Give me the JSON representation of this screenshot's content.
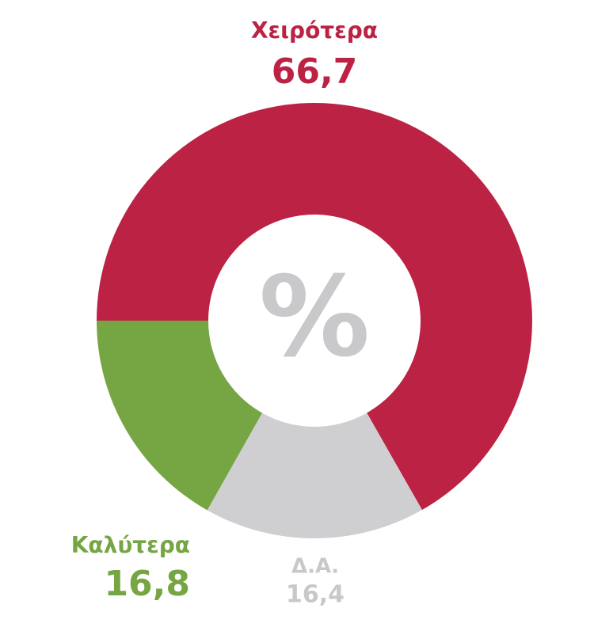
{
  "chart_data": {
    "type": "donut",
    "center_label": "%",
    "categories": [
      "Χειρότερα",
      "Δ.Α.",
      "Καλύτερα"
    ],
    "values": [
      66.7,
      16.4,
      16.8
    ],
    "value_labels": [
      "66,7",
      "16,4",
      "16,8"
    ],
    "colors": [
      "#bb2244",
      "#cfcfd1",
      "#76a543"
    ]
  }
}
